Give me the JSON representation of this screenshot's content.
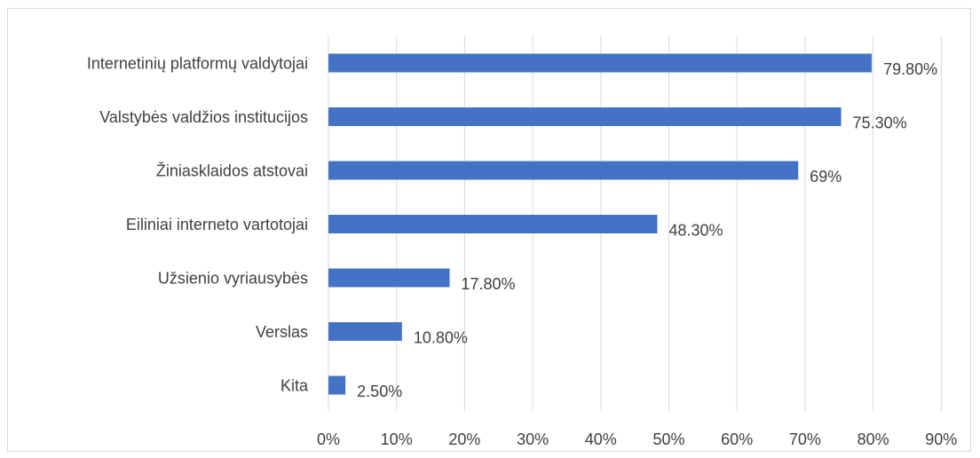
{
  "chart_data": {
    "type": "bar",
    "orientation": "horizontal",
    "categories": [
      "Internetinių platformų valdytojai",
      "Valstybės valdžios institucijos",
      "Žiniasklaidos atstovai",
      "Eiliniai interneto vartotojai",
      "Užsienio vyriausybės",
      "Verslas",
      "Kita"
    ],
    "values": [
      79.8,
      75.3,
      69,
      48.3,
      17.8,
      10.8,
      2.5
    ],
    "data_labels": [
      "79.80%",
      "75.30%",
      "69%",
      "48.30%",
      "17.80%",
      "10.80%",
      "2.50%"
    ],
    "x_ticks": [
      "0%",
      "10%",
      "20%",
      "30%",
      "40%",
      "50%",
      "60%",
      "70%",
      "80%",
      "90%"
    ],
    "xlim": [
      0,
      90
    ],
    "grid": "vertical",
    "legend": "none",
    "bar_color": "#4472c4",
    "grid_color": "#d9d9d9",
    "text_color": "#404040"
  }
}
